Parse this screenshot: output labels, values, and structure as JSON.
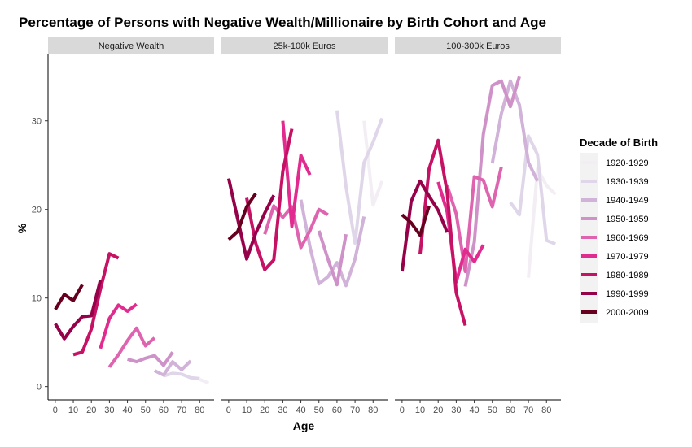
{
  "chart_data": {
    "type": "line",
    "title": "Percentage of Persons with Negative Wealth/Millionaire by Birth Cohort and Age",
    "xlabel": "Age",
    "ylabel": "%",
    "xlim": [
      -4,
      88
    ],
    "ylim": [
      -1.5,
      37.5
    ],
    "xticks": [
      0,
      10,
      20,
      30,
      40,
      50,
      60,
      70,
      80
    ],
    "yticks": [
      0,
      10,
      20,
      30
    ],
    "legend": {
      "title": "Decade of Birth",
      "position": "right",
      "entries": [
        {
          "label": "1920-1929",
          "color": "#f2eef4"
        },
        {
          "label": "1930-1939",
          "color": "#e0d6e9"
        },
        {
          "label": "1940-1949",
          "color": "#d1b2d8"
        },
        {
          "label": "1950-1959",
          "color": "#cf92c8"
        },
        {
          "label": "1960-1969",
          "color": "#df64b0"
        },
        {
          "label": "1970-1979",
          "color": "#e12b8f"
        },
        {
          "label": "1980-1989",
          "color": "#c61265"
        },
        {
          "label": "1990-1999",
          "color": "#96024a"
        },
        {
          "label": "2000-2009",
          "color": "#67001f"
        }
      ]
    },
    "panels": [
      {
        "label": "Negative Wealth",
        "series": [
          {
            "cohort": "1920-1929",
            "x": [
              80,
              85
            ],
            "y": [
              0.8,
              0.4
            ]
          },
          {
            "cohort": "1930-1939",
            "x": [
              60,
              65,
              70,
              75,
              80
            ],
            "y": [
              1.2,
              1.5,
              1.4,
              1.0,
              0.9
            ]
          },
          {
            "cohort": "1940-1949",
            "x": [
              55,
              60,
              65,
              70,
              75
            ],
            "y": [
              1.8,
              1.3,
              2.8,
              1.9,
              2.9
            ]
          },
          {
            "cohort": "1950-1959",
            "x": [
              40,
              45,
              50,
              55,
              60,
              65
            ],
            "y": [
              3.1,
              2.8,
              3.2,
              3.5,
              2.4,
              3.9
            ]
          },
          {
            "cohort": "1960-1969",
            "x": [
              30,
              35,
              40,
              45,
              50,
              55
            ],
            "y": [
              2.2,
              3.6,
              5.2,
              6.6,
              4.6,
              5.5
            ]
          },
          {
            "cohort": "1970-1979",
            "x": [
              25,
              30,
              35,
              40,
              45
            ],
            "y": [
              4.3,
              7.7,
              9.2,
              8.5,
              9.3
            ]
          },
          {
            "cohort": "1980-1989",
            "x": [
              10,
              15,
              20,
              25,
              30,
              35
            ],
            "y": [
              3.6,
              3.9,
              6.5,
              11.0,
              15.0,
              14.5
            ]
          },
          {
            "cohort": "1990-1999",
            "x": [
              0,
              5,
              10,
              15,
              20,
              25
            ],
            "y": [
              7.1,
              5.4,
              6.8,
              7.9,
              8.0,
              12.0
            ]
          },
          {
            "cohort": "2000-2009",
            "x": [
              0,
              5,
              10,
              15
            ],
            "y": [
              8.7,
              10.4,
              9.7,
              11.5
            ]
          }
        ]
      },
      {
        "label": "25k-100k Euros",
        "series": [
          {
            "cohort": "1920-1929",
            "x": [
              75,
              80,
              85
            ],
            "y": [
              30.0,
              20.5,
              23.2
            ]
          },
          {
            "cohort": "1930-1939",
            "x": [
              60,
              65,
              70,
              75,
              80,
              85
            ],
            "y": [
              31.2,
              22.6,
              16.2,
              25.3,
              27.6,
              30.3
            ]
          },
          {
            "cohort": "1940-1949",
            "x": [
              40,
              45,
              50,
              55,
              60,
              65,
              70,
              75
            ],
            "y": [
              21.1,
              15.8,
              11.6,
              12.4,
              14.0,
              11.4,
              14.4,
              19.2
            ]
          },
          {
            "cohort": "1950-1959",
            "x": [
              50,
              55,
              60,
              65
            ],
            "y": [
              17.6,
              14.4,
              11.5,
              17.2
            ]
          },
          {
            "cohort": "1960-1969",
            "x": [
              20,
              25,
              30,
              35,
              40,
              45,
              50,
              55
            ],
            "y": [
              17.2,
              20.4,
              19.1,
              20.3,
              15.7,
              17.6,
              20.0,
              19.4
            ]
          },
          {
            "cohort": "1970-1979",
            "x": [
              30,
              35,
              40,
              45
            ],
            "y": [
              30.0,
              18.1,
              26.1,
              23.9
            ]
          },
          {
            "cohort": "1980-1989",
            "x": [
              10,
              15,
              20,
              25,
              30,
              35
            ],
            "y": [
              21.3,
              16.2,
              13.2,
              14.3,
              24.3,
              29.1
            ]
          },
          {
            "cohort": "1990-1999",
            "x": [
              0,
              5,
              10,
              15,
              20,
              25
            ],
            "y": [
              23.5,
              18.9,
              14.4,
              17.3,
              19.6,
              21.6
            ]
          },
          {
            "cohort": "2000-2009",
            "x": [
              0,
              5,
              10,
              15
            ],
            "y": [
              16.6,
              17.5,
              20.3,
              21.8
            ]
          }
        ]
      },
      {
        "label": "100-300k Euros",
        "series": [
          {
            "cohort": "1920-1929",
            "x": [
              70,
              75,
              80,
              85
            ],
            "y": [
              12.3,
              24.6,
              22.7,
              21.7
            ]
          },
          {
            "cohort": "1930-1939",
            "x": [
              60,
              65,
              70,
              75,
              80,
              85
            ],
            "y": [
              20.8,
              19.4,
              28.3,
              26.2,
              16.5,
              16.1
            ]
          },
          {
            "cohort": "1940-1949",
            "x": [
              50,
              55,
              60,
              65,
              70,
              75
            ],
            "y": [
              25.2,
              30.8,
              34.5,
              31.8,
              25.3,
              23.2
            ]
          },
          {
            "cohort": "1950-1959",
            "x": [
              35,
              40,
              45,
              50,
              55,
              60,
              65
            ],
            "y": [
              11.3,
              16.3,
              28.5,
              34.0,
              34.5,
              31.6,
              35.0
            ]
          },
          {
            "cohort": "1960-1969",
            "x": [
              25,
              30,
              35,
              40,
              45,
              50,
              55
            ],
            "y": [
              22.7,
              19.5,
              13.0,
              23.7,
              23.3,
              20.3,
              24.8
            ]
          },
          {
            "cohort": "1970-1979",
            "x": [
              20,
              25,
              30,
              35,
              40,
              45
            ],
            "y": [
              23.1,
              19.7,
              11.8,
              15.5,
              14.1,
              16.0
            ]
          },
          {
            "cohort": "1980-1989",
            "x": [
              10,
              15,
              20,
              25,
              30,
              35
            ],
            "y": [
              15.0,
              24.6,
              27.8,
              21.9,
              10.6,
              6.9
            ]
          },
          {
            "cohort": "1990-1999",
            "x": [
              0,
              5,
              10,
              15,
              20,
              25
            ],
            "y": [
              13.0,
              20.9,
              23.2,
              21.5,
              19.9,
              17.4
            ]
          },
          {
            "cohort": "2000-2009",
            "x": [
              0,
              5,
              10,
              15
            ],
            "y": [
              19.4,
              18.5,
              17.1,
              20.4
            ]
          }
        ]
      }
    ]
  }
}
